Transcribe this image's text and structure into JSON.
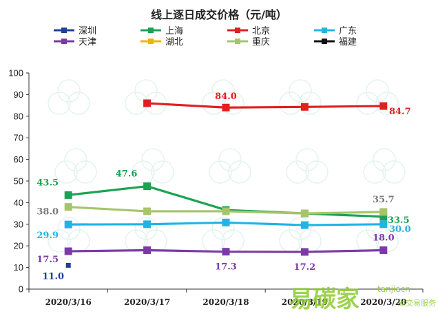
{
  "chart_data": {
    "type": "line",
    "title": "线上逐日成交价格（元/吨）",
    "categories": [
      "2020/3/16",
      "2020/3/17",
      "2020/3/18",
      "2020/3/19",
      "2020/3/20"
    ],
    "ylim": [
      0,
      100
    ],
    "yticks": [
      0,
      10,
      20,
      30,
      40,
      50,
      60,
      70,
      80,
      90,
      100
    ],
    "grid": false,
    "legend_position": "top",
    "series": [
      {
        "name": "深圳",
        "color": "#1f3f99",
        "values": [
          11.0,
          null,
          null,
          null,
          null
        ],
        "labels": [
          "11.0",
          null,
          null,
          null,
          null
        ],
        "label_color": "#1f3f99"
      },
      {
        "name": "上海",
        "color": "#1aa352",
        "values": [
          43.5,
          47.6,
          36.6,
          35.0,
          33.5
        ],
        "labels": [
          "43.5",
          "47.6",
          null,
          null,
          "33.5"
        ],
        "label_color": "#1aa352"
      },
      {
        "name": "北京",
        "color": "#e02020",
        "values": [
          null,
          86.0,
          84.0,
          84.3,
          84.7
        ],
        "labels": [
          null,
          null,
          "84.0",
          null,
          "84.7"
        ],
        "label_color": "#e02020"
      },
      {
        "name": "广东",
        "color": "#1fb4e6",
        "values": [
          29.9,
          30.0,
          30.8,
          29.6,
          30.0
        ],
        "labels": [
          "29.9",
          null,
          null,
          null,
          "30.0"
        ],
        "label_color": "#1fb4e6"
      },
      {
        "name": "天津",
        "color": "#7b3aa8",
        "values": [
          17.5,
          18.0,
          17.3,
          17.2,
          18.0
        ],
        "labels": [
          "17.5",
          null,
          "17.3",
          "17.2",
          "18.0"
        ],
        "label_color": "#7b3aa8"
      },
      {
        "name": "湖北",
        "color": "#f0b400",
        "values": [
          null,
          null,
          null,
          null,
          null
        ],
        "labels": [
          null,
          null,
          null,
          null,
          null
        ],
        "label_color": "#f0b400"
      },
      {
        "name": "重庆",
        "color": "#a6c46a",
        "values": [
          38.0,
          36.0,
          36.0,
          35.0,
          35.7
        ],
        "labels": [
          "38.0",
          null,
          null,
          null,
          "35.7"
        ],
        "label_color": "#7a7a7a"
      },
      {
        "name": "福建",
        "color": "#111111",
        "values": [
          null,
          null,
          null,
          null,
          null
        ],
        "labels": [
          null,
          null,
          null,
          null,
          null
        ],
        "label_color": "#111111"
      }
    ]
  },
  "watermark": {
    "brand_text": "易碳家",
    "brand_url": "tanjiacn",
    "brand_sub": "碳交易服务",
    "brand_color": "#8ccc2e"
  }
}
